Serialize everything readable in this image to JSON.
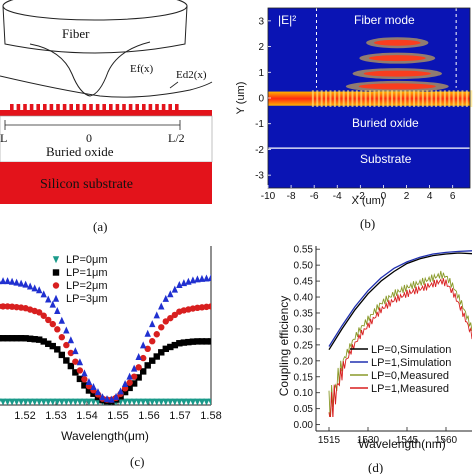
{
  "panel_a": {
    "fiber_label": "Fiber",
    "ef_label": "Ef(x)",
    "ed2_label": "Ed2(x)",
    "zero_label": "0",
    "l_minus_label": "L",
    "l_half_label": "L/2",
    "oxide_label": "Buried oxide",
    "substrate_label": "Silicon substrate",
    "caption": "(a)"
  },
  "panel_b": {
    "field_label": "|E|²",
    "fiber_mode_label": "Fiber mode",
    "oxide_label": "Buried oxide",
    "substrate_label": "Substrate",
    "caption": "(b)",
    "colors": {
      "background": "#0a14b4",
      "field": "#ff3a1a",
      "glow": "#ffd23a",
      "divider": "#ffffff"
    }
  },
  "panel_c": {
    "caption": "(c)"
  },
  "panel_d": {
    "caption": "(d)"
  },
  "chart_data": [
    {
      "type": "heatmap",
      "panel": "b",
      "xlabel": "X (um)",
      "ylabel": "Y (um)",
      "xlim": [
        -10,
        7.5
      ],
      "ylim": [
        -3.5,
        3.5
      ],
      "xticks": [
        -10,
        -8,
        -6,
        -4,
        -2,
        0,
        2,
        4,
        6
      ],
      "yticks": [
        3,
        2,
        1,
        0,
        -1,
        -2,
        -3
      ]
    },
    {
      "type": "line",
      "panel": "c",
      "xlabel": "Wavelength(μm)",
      "xlim": [
        1.51,
        1.58
      ],
      "xticks": [
        1.52,
        1.53,
        1.54,
        1.55,
        1.56,
        1.57,
        1.58
      ],
      "ylim": [
        0,
        1
      ],
      "legend_position": "top-center",
      "x": [
        1.51,
        1.515,
        1.52,
        1.525,
        1.53,
        1.535,
        1.54,
        1.545,
        1.5475,
        1.55,
        1.555,
        1.56,
        1.565,
        1.57,
        1.575,
        1.58
      ],
      "series": [
        {
          "name": "LP=0μm",
          "marker": "triangle-down",
          "color": "#1a9a8a",
          "values": [
            0.02,
            0.02,
            0.02,
            0.02,
            0.02,
            0.02,
            0.02,
            0.02,
            0.02,
            0.02,
            0.02,
            0.02,
            0.02,
            0.02,
            0.02,
            0.02
          ]
        },
        {
          "name": "LP=1μm",
          "marker": "square",
          "color": "#000000",
          "values": [
            0.42,
            0.42,
            0.42,
            0.41,
            0.36,
            0.24,
            0.1,
            0.03,
            0.02,
            0.04,
            0.13,
            0.26,
            0.35,
            0.39,
            0.4,
            0.4
          ]
        },
        {
          "name": "LP=2μm",
          "marker": "circle",
          "color": "#d81f1f",
          "values": [
            0.62,
            0.62,
            0.61,
            0.58,
            0.49,
            0.32,
            0.13,
            0.04,
            0.03,
            0.05,
            0.17,
            0.37,
            0.52,
            0.59,
            0.61,
            0.62
          ]
        },
        {
          "name": "LP=3μm",
          "marker": "triangle-up",
          "color": "#2030d0",
          "values": [
            0.78,
            0.78,
            0.76,
            0.72,
            0.61,
            0.4,
            0.16,
            0.05,
            0.03,
            0.06,
            0.22,
            0.47,
            0.66,
            0.76,
            0.79,
            0.8
          ]
        }
      ]
    },
    {
      "type": "line",
      "panel": "d",
      "xlabel": "Wavelength(nm)",
      "ylabel": "Coupling efficiency",
      "xlim": [
        1510,
        1570
      ],
      "ylim": [
        -0.02,
        0.56
      ],
      "xticks": [
        1515,
        1530,
        1545,
        1560
      ],
      "yticks": [
        0.0,
        0.05,
        0.1,
        0.15,
        0.2,
        0.25,
        0.3,
        0.35,
        0.4,
        0.45,
        0.5,
        0.55
      ],
      "legend_position": "bottom-right",
      "series": [
        {
          "name": "LP=0,Simulation",
          "color": "#000000",
          "x": [
            1515,
            1520,
            1525,
            1530,
            1535,
            1540,
            1545,
            1550,
            1555,
            1560,
            1565,
            1570
          ],
          "values": [
            0.235,
            0.3,
            0.36,
            0.41,
            0.45,
            0.48,
            0.505,
            0.52,
            0.53,
            0.535,
            0.538,
            0.536
          ]
        },
        {
          "name": "LP=1,Simulation",
          "color": "#2030b0",
          "x": [
            1515,
            1520,
            1525,
            1530,
            1535,
            1540,
            1545,
            1550,
            1555,
            1560,
            1565,
            1570
          ],
          "values": [
            0.245,
            0.31,
            0.37,
            0.42,
            0.46,
            0.49,
            0.51,
            0.525,
            0.535,
            0.54,
            0.543,
            0.545
          ]
        },
        {
          "name": "LP=0,Measured",
          "color": "#8a9a2a",
          "x": [
            1515,
            1517,
            1519,
            1521,
            1524,
            1527,
            1530,
            1535,
            1540,
            1545,
            1550,
            1555,
            1558,
            1560,
            1563,
            1566,
            1569,
            1570
          ],
          "values": [
            0.05,
            0.1,
            0.16,
            0.21,
            0.26,
            0.3,
            0.33,
            0.38,
            0.41,
            0.43,
            0.445,
            0.46,
            0.47,
            0.465,
            0.43,
            0.38,
            0.32,
            0.3
          ]
        },
        {
          "name": "LP=1,Measured",
          "color": "#d81f1f",
          "x": [
            1515,
            1517,
            1519,
            1521,
            1524,
            1527,
            1530,
            1535,
            1540,
            1545,
            1550,
            1555,
            1558,
            1560,
            1563,
            1566,
            1569,
            1570
          ],
          "values": [
            0.03,
            0.08,
            0.14,
            0.19,
            0.24,
            0.28,
            0.31,
            0.36,
            0.39,
            0.41,
            0.425,
            0.44,
            0.45,
            0.445,
            0.41,
            0.36,
            0.3,
            0.28
          ]
        }
      ]
    }
  ]
}
